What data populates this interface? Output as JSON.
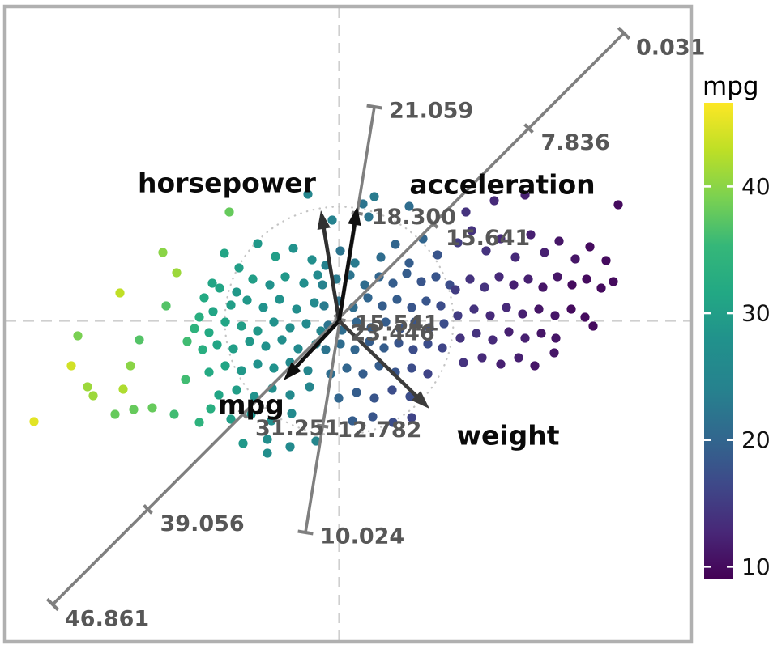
{
  "chart_data": {
    "type": "scatter",
    "variant": "pca-biplot",
    "title": "",
    "colorbar": {
      "title": "mpg",
      "tick_values": [
        10,
        20,
        30,
        40
      ],
      "tick_labels": [
        "10",
        "20",
        "30",
        "40"
      ],
      "value_min": 9.0,
      "value_max": 46.6,
      "colormap": "viridis"
    },
    "origin": [
      418.5,
      396.5
    ],
    "unit_circle_radius": 141,
    "arrows": [
      {
        "name": "horsepower",
        "label": "horsepower",
        "tip": [
          396,
          260
        ],
        "color": "#303030",
        "label_pos": [
          280,
          226
        ]
      },
      {
        "name": "acceleration",
        "label": "acceleration",
        "tip": [
          441,
          255
        ],
        "color": "#0f0f0f",
        "label_pos": [
          620,
          228
        ]
      },
      {
        "name": "mpg",
        "label": "mpg",
        "tip": [
          350,
          470
        ],
        "color": "#0f0f0f",
        "label_pos": [
          310,
          500
        ]
      },
      {
        "name": "weight",
        "label": "weight",
        "tip": [
          530,
          505
        ],
        "color": "#3c3c3c",
        "label_pos": [
          627,
          538
        ]
      }
    ],
    "calibrated_axes": [
      {
        "name": "mpg-axis",
        "start": [
          65,
          747
        ],
        "end": [
          770,
          41
        ],
        "tick_labels": [
          "46.861",
          "39.056",
          "31.251",
          "23.446",
          "15.641",
          "7.836",
          "0.031"
        ],
        "label_offset": [
          15,
          18
        ]
      },
      {
        "name": "acceleration-axis",
        "start": [
          377,
          658
        ],
        "end": [
          462,
          132
        ],
        "tick_labels": [
          "10.024",
          "12.782",
          "15.541",
          "18.300",
          "21.059"
        ],
        "label_offset": [
          18,
          5
        ]
      }
    ],
    "points": [
      [
        42,
        521,
        45
      ],
      [
        88,
        452,
        44
      ],
      [
        108,
        478,
        41
      ],
      [
        96,
        415,
        39
      ],
      [
        115,
        489,
        41
      ],
      [
        148,
        362,
        43
      ],
      [
        142,
        512,
        38
      ],
      [
        161,
        452,
        40
      ],
      [
        172,
        420,
        37
      ],
      [
        188,
        504,
        38
      ],
      [
        205,
        378,
        37
      ],
      [
        201,
        312,
        40
      ],
      [
        218,
        337,
        41
      ],
      [
        229,
        469,
        36
      ],
      [
        231,
        422,
        36
      ],
      [
        152,
        481,
        42
      ],
      [
        165,
        506,
        38
      ],
      [
        215,
        512,
        36
      ],
      [
        246,
        522,
        34
      ],
      [
        260,
        505,
        33
      ],
      [
        262,
        350,
        31
      ],
      [
        277,
        313,
        31
      ],
      [
        295,
        331,
        30
      ],
      [
        318,
        301,
        29
      ],
      [
        340,
        317,
        30
      ],
      [
        362,
        307,
        28
      ],
      [
        385,
        321,
        27
      ],
      [
        283,
        262,
        38
      ],
      [
        252,
        368,
        32
      ],
      [
        271,
        356,
        31
      ],
      [
        292,
        361,
        29
      ],
      [
        312,
        345,
        30
      ],
      [
        333,
        352,
        28
      ],
      [
        352,
        342,
        29
      ],
      [
        375,
        350,
        27
      ],
      [
        392,
        340,
        26
      ],
      [
        246,
        392,
        33
      ],
      [
        263,
        385,
        31
      ],
      [
        285,
        377,
        30
      ],
      [
        305,
        371,
        29
      ],
      [
        325,
        380,
        28
      ],
      [
        345,
        370,
        28
      ],
      [
        366,
        382,
        27
      ],
      [
        388,
        374,
        26
      ],
      [
        240,
        406,
        34
      ],
      [
        258,
        411,
        32
      ],
      [
        278,
        398,
        31
      ],
      [
        298,
        403,
        30
      ],
      [
        318,
        409,
        29
      ],
      [
        338,
        398,
        28
      ],
      [
        358,
        405,
        27
      ],
      [
        378,
        400,
        26
      ],
      [
        396,
        409,
        25
      ],
      [
        250,
        432,
        33
      ],
      [
        268,
        426,
        31
      ],
      [
        288,
        431,
        30
      ],
      [
        308,
        422,
        29
      ],
      [
        328,
        428,
        28
      ],
      [
        348,
        420,
        27
      ],
      [
        368,
        431,
        26
      ],
      [
        390,
        425,
        25
      ],
      [
        258,
        460,
        32
      ],
      [
        278,
        452,
        31
      ],
      [
        298,
        458,
        29
      ],
      [
        318,
        450,
        28
      ],
      [
        338,
        455,
        28
      ],
      [
        358,
        448,
        26
      ],
      [
        380,
        458,
        25
      ],
      [
        270,
        488,
        31
      ],
      [
        292,
        482,
        30
      ],
      [
        314,
        490,
        28
      ],
      [
        336,
        480,
        27
      ],
      [
        358,
        488,
        26
      ],
      [
        382,
        478,
        25
      ],
      [
        285,
        518,
        30
      ],
      [
        310,
        512,
        28
      ],
      [
        335,
        520,
        27
      ],
      [
        360,
        511,
        26
      ],
      [
        300,
        548,
        29
      ],
      [
        330,
        543,
        27
      ],
      [
        358,
        552,
        26
      ],
      [
        390,
        545,
        25
      ],
      [
        330,
        560,
        27
      ],
      [
        380,
        240,
        25
      ],
      [
        410,
        272,
        24
      ],
      [
        402,
        328,
        24
      ],
      [
        420,
        310,
        22
      ],
      [
        438,
        325,
        23
      ],
      [
        455,
        268,
        22
      ],
      [
        470,
        318,
        21
      ],
      [
        488,
        302,
        20
      ],
      [
        505,
        325,
        19
      ],
      [
        522,
        295,
        20
      ],
      [
        540,
        315,
        18
      ],
      [
        462,
        243,
        23
      ],
      [
        505,
        255,
        21
      ],
      [
        448,
        252,
        22
      ],
      [
        398,
        352,
        24
      ],
      [
        415,
        345,
        23
      ],
      [
        432,
        340,
        22
      ],
      [
        450,
        352,
        21
      ],
      [
        468,
        342,
        20
      ],
      [
        485,
        350,
        19
      ],
      [
        502,
        338,
        19
      ],
      [
        520,
        348,
        18
      ],
      [
        538,
        342,
        18
      ],
      [
        555,
        352,
        17
      ],
      [
        400,
        378,
        23
      ],
      [
        418,
        372,
        22
      ],
      [
        436,
        380,
        21
      ],
      [
        454,
        368,
        20
      ],
      [
        472,
        378,
        19
      ],
      [
        490,
        370,
        19
      ],
      [
        508,
        380,
        18
      ],
      [
        526,
        372,
        18
      ],
      [
        544,
        378,
        17
      ],
      [
        405,
        402,
        22
      ],
      [
        422,
        408,
        21
      ],
      [
        440,
        398,
        20
      ],
      [
        458,
        405,
        19
      ],
      [
        476,
        398,
        19
      ],
      [
        494,
        406,
        18
      ],
      [
        512,
        398,
        18
      ],
      [
        530,
        405,
        17
      ],
      [
        548,
        400,
        17
      ],
      [
        402,
        432,
        22
      ],
      [
        420,
        425,
        21
      ],
      [
        438,
        432,
        20
      ],
      [
        456,
        422,
        19
      ],
      [
        474,
        430,
        19
      ],
      [
        492,
        424,
        18
      ],
      [
        510,
        432,
        17
      ],
      [
        528,
        425,
        17
      ],
      [
        546,
        430,
        16
      ],
      [
        408,
        462,
        21
      ],
      [
        428,
        455,
        20
      ],
      [
        448,
        462,
        19
      ],
      [
        468,
        452,
        19
      ],
      [
        488,
        460,
        18
      ],
      [
        508,
        455,
        17
      ],
      [
        528,
        462,
        16
      ],
      [
        418,
        492,
        20
      ],
      [
        440,
        485,
        19
      ],
      [
        462,
        492,
        18
      ],
      [
        484,
        482,
        17
      ],
      [
        506,
        490,
        17
      ],
      [
        435,
        520,
        19
      ],
      [
        460,
        515,
        18
      ],
      [
        485,
        522,
        17
      ],
      [
        508,
        516,
        16
      ],
      [
        575,
        262,
        14
      ],
      [
        610,
        248,
        13
      ],
      [
        648,
        241,
        12
      ],
      [
        763,
        253,
        10
      ],
      [
        565,
        300,
        15
      ],
      [
        582,
        285,
        14
      ],
      [
        600,
        310,
        14
      ],
      [
        618,
        295,
        13
      ],
      [
        636,
        318,
        13
      ],
      [
        655,
        290,
        12
      ],
      [
        672,
        312,
        12
      ],
      [
        690,
        298,
        11
      ],
      [
        710,
        320,
        11
      ],
      [
        728,
        305,
        10
      ],
      [
        748,
        322,
        10
      ],
      [
        562,
        358,
        15
      ],
      [
        580,
        345,
        14
      ],
      [
        598,
        355,
        14
      ],
      [
        616,
        342,
        13
      ],
      [
        634,
        352,
        12
      ],
      [
        652,
        345,
        12
      ],
      [
        670,
        355,
        11
      ],
      [
        688,
        342,
        11
      ],
      [
        706,
        352,
        10
      ],
      [
        724,
        345,
        10
      ],
      [
        742,
        356,
        10
      ],
      [
        757,
        348,
        10
      ],
      [
        565,
        390,
        15
      ],
      [
        585,
        382,
        14
      ],
      [
        605,
        390,
        13
      ],
      [
        625,
        380,
        13
      ],
      [
        645,
        388,
        12
      ],
      [
        665,
        382,
        11
      ],
      [
        685,
        390,
        11
      ],
      [
        705,
        382,
        10
      ],
      [
        722,
        392,
        10
      ],
      [
        732,
        403,
        10
      ],
      [
        568,
        418,
        14
      ],
      [
        588,
        412,
        14
      ],
      [
        608,
        420,
        13
      ],
      [
        628,
        410,
        12
      ],
      [
        648,
        418,
        12
      ],
      [
        668,
        412,
        11
      ],
      [
        686,
        418,
        11
      ],
      [
        572,
        448,
        14
      ],
      [
        595,
        442,
        13
      ],
      [
        618,
        450,
        12
      ],
      [
        640,
        442,
        12
      ],
      [
        660,
        452,
        11
      ],
      [
        684,
        436,
        11
      ]
    ]
  }
}
